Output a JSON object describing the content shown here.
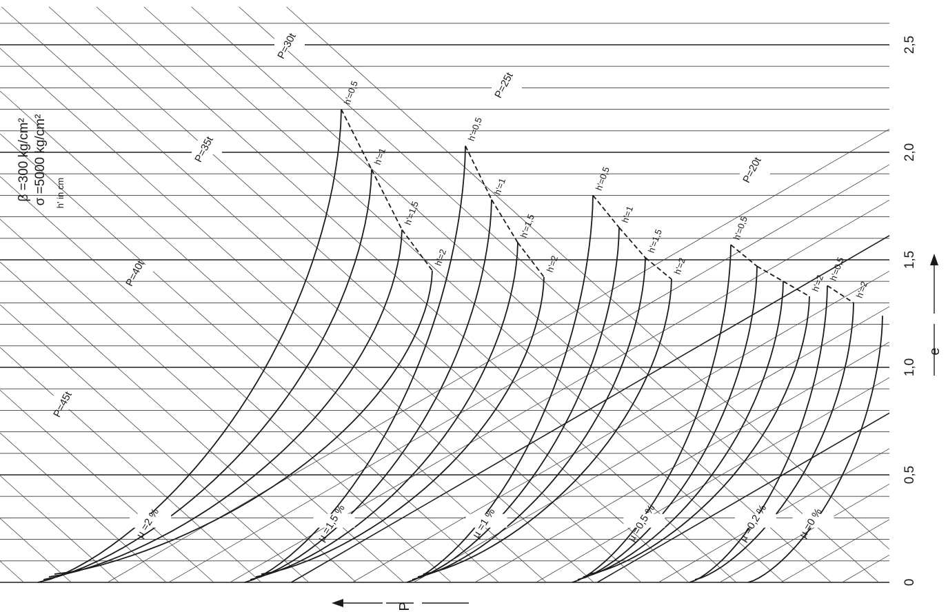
{
  "chart_data": {
    "type": "line",
    "params": [
      "β =300  kg/cm²",
      "σ =5000  kg/cm²"
    ],
    "h_unit_note": "h' in cm",
    "x_axis_label": "e",
    "y_axis_label": "P",
    "x_ticks": [
      "0",
      "0,5",
      "1,0",
      "1,5",
      "2,0",
      "2,5"
    ],
    "x_tick_values": [
      0,
      0.5,
      1.0,
      1.5,
      2.0,
      2.5
    ],
    "load_lines": [
      {
        "label": "P=45t",
        "value": 45
      },
      {
        "label": "P=40t",
        "value": 40
      },
      {
        "label": "P=35t",
        "value": 35
      },
      {
        "label": "P=30t",
        "value": 30
      },
      {
        "label": "P=25t",
        "value": 25
      },
      {
        "label": "P=20t",
        "value": 20
      }
    ],
    "mu_groups": [
      {
        "label": "µ =2 %",
        "curves": [
          "h'=0,5",
          "h'=1",
          "h'=1,5",
          "h'=2"
        ],
        "end_labels": [
          "h'=0,5",
          "h'=1",
          "h'=1,5",
          "h'=2"
        ],
        "e_max": [
          2.2,
          1.92,
          1.64,
          1.45
        ]
      },
      {
        "label": "µ =1,5 %",
        "curves": [
          "h'=0,5",
          "h'=1",
          "h'=1,5",
          "h'=2"
        ],
        "end_labels": [
          "h'=0,5",
          "h'=1",
          "h'=1,5",
          "h'=2"
        ],
        "e_max": [
          2.03,
          1.78,
          1.58,
          1.42
        ]
      },
      {
        "label": "µ =1 %",
        "curves": [
          "h'=0,5",
          "h'=1",
          "h'=1,5",
          "h'=2"
        ],
        "end_labels": [
          "h'=0,5",
          "h'=1",
          "h'=1,5",
          "h'=2"
        ],
        "e_max": [
          1.8,
          1.65,
          1.51,
          1.41
        ]
      },
      {
        "label": "µ =0,5 %",
        "curves": [
          "h'=0,5",
          "h'=1",
          "h'=1,5",
          "h'=2"
        ],
        "end_labels": [
          "h'=0,5",
          "h'=2"
        ],
        "e_max": [
          1.57,
          1.47,
          1.4,
          1.33
        ]
      },
      {
        "label": "µ =0,2 %",
        "curves": [
          "h'=0,5",
          "h'=2"
        ],
        "end_labels": [
          "h'=0,5",
          "h'=2"
        ],
        "e_max": [
          1.38,
          1.3
        ]
      },
      {
        "label": "µ =0 %",
        "curves": [
          "h'=0"
        ],
        "end_labels": [],
        "e_max": [
          1.24
        ]
      }
    ]
  }
}
